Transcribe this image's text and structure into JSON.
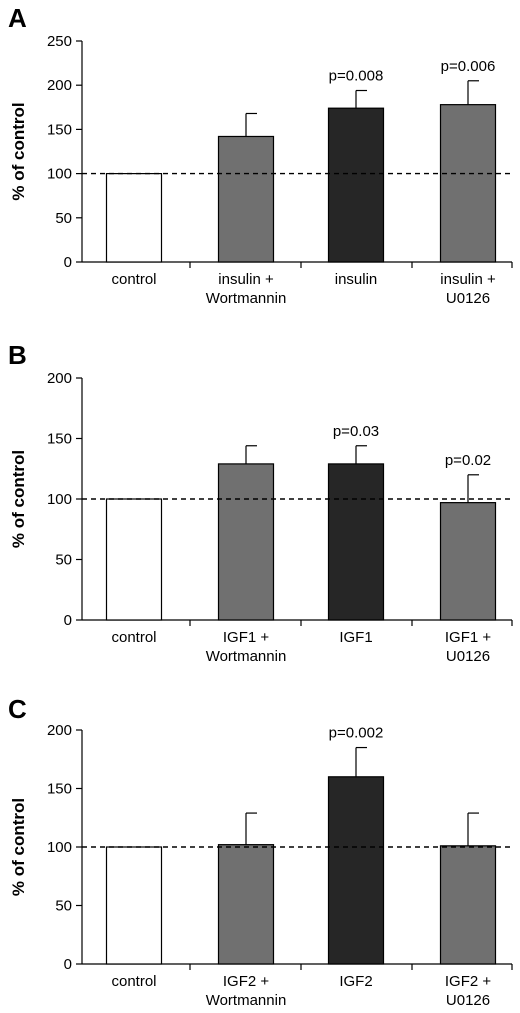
{
  "chart_data": [
    {
      "panel": "A",
      "type": "bar",
      "ylabel": "% of control",
      "ylim": [
        0,
        250
      ],
      "yticks": [
        "0",
        "50",
        "100",
        "150",
        "200",
        "250"
      ],
      "reference_line": 100,
      "categories": [
        [
          "control"
        ],
        [
          "insulin +",
          "Wortmannin"
        ],
        [
          "insulin"
        ],
        [
          "insulin +",
          "U0126"
        ]
      ],
      "values": [
        100,
        142,
        174,
        178
      ],
      "errors": [
        0,
        26,
        20,
        27
      ],
      "bar_colors": [
        "#ffffff",
        "#707070",
        "#262626",
        "#707070"
      ],
      "annotations": [
        "",
        "",
        "p=0.008",
        "p=0.006"
      ]
    },
    {
      "panel": "B",
      "type": "bar",
      "ylabel": "% of control",
      "ylim": [
        0,
        200
      ],
      "yticks": [
        "0",
        "50",
        "100",
        "150",
        "200"
      ],
      "reference_line": 100,
      "categories": [
        [
          "control"
        ],
        [
          "IGF1 +",
          "Wortmannin"
        ],
        [
          "IGF1"
        ],
        [
          "IGF1 +",
          "U0126"
        ]
      ],
      "values": [
        100,
        129,
        129,
        97
      ],
      "errors": [
        0,
        15,
        15,
        23
      ],
      "bar_colors": [
        "#ffffff",
        "#707070",
        "#262626",
        "#707070"
      ],
      "annotations": [
        "",
        "",
        "p=0.03",
        "p=0.02"
      ]
    },
    {
      "panel": "C",
      "type": "bar",
      "ylabel": "% of control",
      "ylim": [
        0,
        200
      ],
      "yticks": [
        "0",
        "50",
        "100",
        "150",
        "200"
      ],
      "reference_line": 100,
      "categories": [
        [
          "control"
        ],
        [
          "IGF2 +",
          "Wortmannin"
        ],
        [
          "IGF2"
        ],
        [
          "IGF2 +",
          "U0126"
        ]
      ],
      "values": [
        100,
        102,
        160,
        101
      ],
      "errors": [
        0,
        27,
        25,
        28
      ],
      "bar_colors": [
        "#ffffff",
        "#707070",
        "#262626",
        "#707070"
      ],
      "annotations": [
        "",
        "",
        "p=0.002",
        ""
      ]
    }
  ]
}
